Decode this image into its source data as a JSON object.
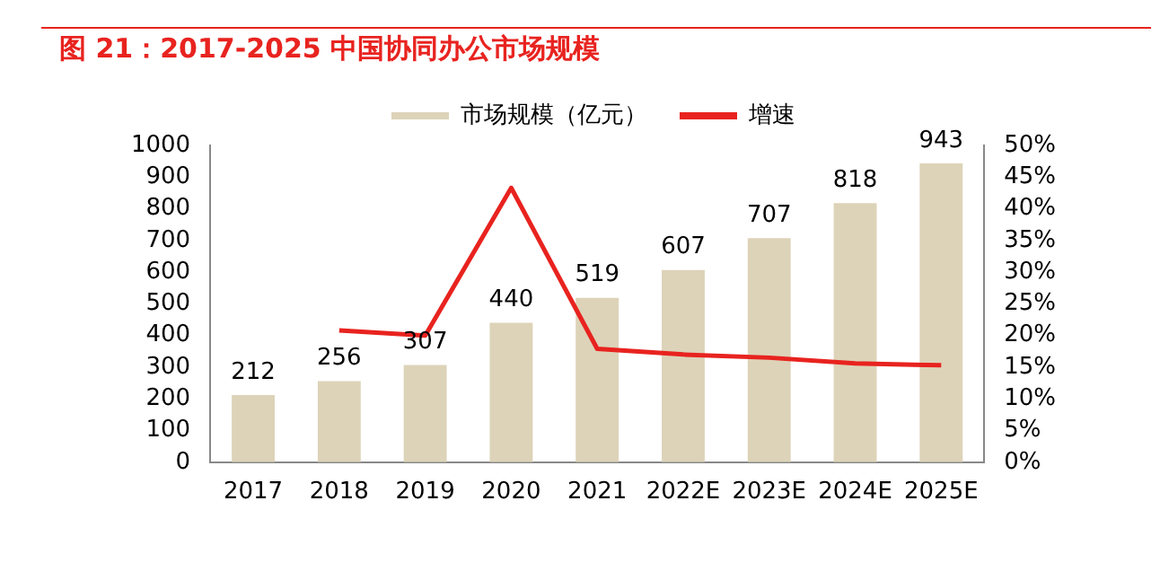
{
  "chart_data": {
    "type": "bar",
    "title": "图 21：2017-2025 中国协同办公市场规模",
    "categories": [
      "2017",
      "2018",
      "2019",
      "2020",
      "2021",
      "2022E",
      "2023E",
      "2024E",
      "2025E"
    ],
    "series": [
      {
        "name": "市场规模（亿元）",
        "color": "#ddd3b8",
        "values": [
          212,
          256,
          307,
          440,
          519,
          607,
          707,
          818,
          943
        ],
        "value_labels": [
          "212",
          "256",
          "307",
          "440",
          "519",
          "607",
          "707",
          "818",
          "943"
        ]
      },
      {
        "name": "增速",
        "type": "line",
        "axis": "y2",
        "color": "#e8231f",
        "values": [
          null,
          20.8,
          20,
          43.3,
          17.9,
          17,
          16.5,
          15.6,
          15.3
        ]
      }
    ],
    "ylim": [
      0,
      1000
    ],
    "yticks": [
      0,
      100,
      200,
      300,
      400,
      500,
      600,
      700,
      800,
      900,
      1000
    ],
    "y2lim": [
      0,
      50
    ],
    "y2ticks": [
      {
        "value": 0,
        "label": "0%"
      },
      {
        "value": 5,
        "label": "5%"
      },
      {
        "value": 10,
        "label": "10%"
      },
      {
        "value": 15,
        "label": "15%"
      },
      {
        "value": 20,
        "label": "20%"
      },
      {
        "value": 25,
        "label": "25%"
      },
      {
        "value": 30,
        "label": "30%"
      },
      {
        "value": 35,
        "label": "35%"
      },
      {
        "value": 40,
        "label": "40%"
      },
      {
        "value": 45,
        "label": "45%"
      },
      {
        "value": 50,
        "label": "50%"
      }
    ],
    "grid": false,
    "legend": "top",
    "marker": "none",
    "line_style": "solid"
  }
}
